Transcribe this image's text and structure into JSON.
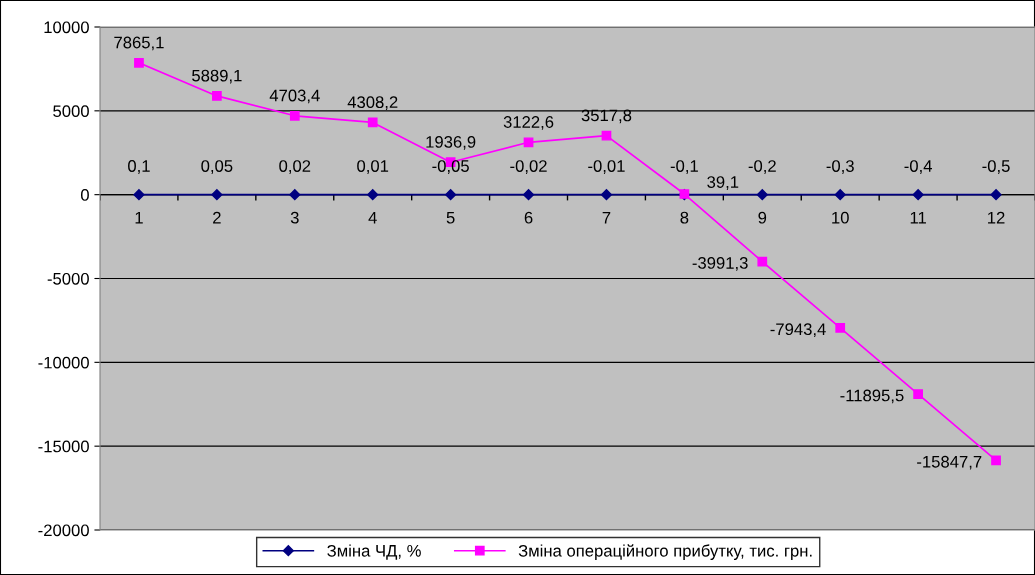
{
  "chart_data": {
    "type": "line",
    "categories": [
      "1",
      "2",
      "3",
      "4",
      "5",
      "6",
      "7",
      "8",
      "9",
      "10",
      "11",
      "12"
    ],
    "series": [
      {
        "name": "Зміна ЧД, %",
        "color": "#000080",
        "marker": "diamond",
        "values": [
          0.1,
          0.05,
          0.02,
          0.01,
          -0.05,
          -0.02,
          -0.01,
          -0.1,
          -0.2,
          -0.3,
          -0.4,
          -0.5
        ],
        "value_labels": [
          "0,1",
          "0,05",
          "0,02",
          "0,01",
          "-0,05",
          "-0,02",
          "-0,01",
          "-0,1",
          "-0,2",
          "-0,3",
          "-0,4",
          "-0,5"
        ]
      },
      {
        "name": "Зміна операційного прибутку, тис. грн.",
        "color": "#ff00ff",
        "marker": "square",
        "values": [
          7865.1,
          5889.1,
          4703.4,
          4308.2,
          1936.9,
          3122.6,
          3517.8,
          39.1,
          -3991.3,
          -7943.4,
          -11895.5,
          -15847.7
        ],
        "value_labels": [
          "7865,1",
          "5889,1",
          "4703,4",
          "4308,2",
          "1936,9",
          "3122,6",
          "3517,8",
          "39,1",
          "-3991,3",
          "-7943,4",
          "-11895,5",
          "-15847,7"
        ]
      }
    ],
    "ylim": [
      -20000,
      10000
    ],
    "yticks": [
      -20000,
      -15000,
      -10000,
      -5000,
      0,
      5000,
      10000
    ],
    "grid": "y",
    "legend": "bottom",
    "line_style": "solid"
  }
}
